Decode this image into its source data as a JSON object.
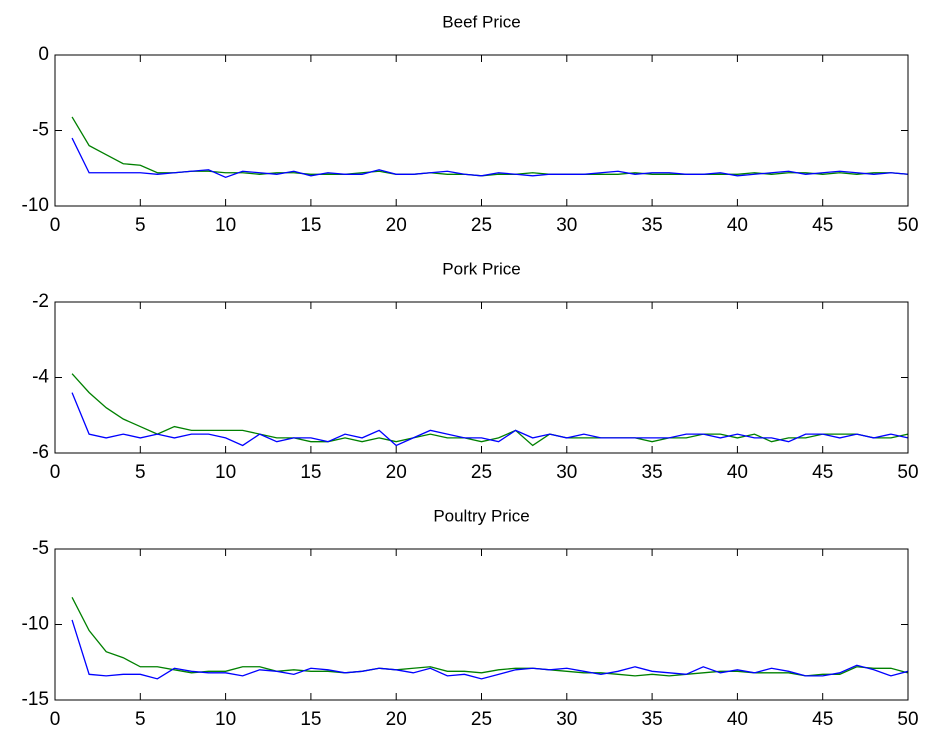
{
  "chart_data": [
    {
      "type": "line",
      "title": "Beef Price",
      "x": [
        1,
        2,
        3,
        4,
        5,
        6,
        7,
        8,
        9,
        10,
        11,
        12,
        13,
        14,
        15,
        16,
        17,
        18,
        19,
        20,
        21,
        22,
        23,
        24,
        25,
        26,
        27,
        28,
        29,
        30,
        31,
        32,
        33,
        34,
        35,
        36,
        37,
        38,
        39,
        40,
        41,
        42,
        43,
        44,
        45,
        46,
        47,
        48,
        49,
        50
      ],
      "series": [
        {
          "color": "#008000",
          "values": [
            -4.1,
            -6.0,
            -6.6,
            -7.2,
            -7.3,
            -7.8,
            -7.8,
            -7.7,
            -7.7,
            -7.8,
            -7.8,
            -7.9,
            -7.8,
            -7.8,
            -7.9,
            -7.9,
            -7.9,
            -7.8,
            -7.7,
            -7.9,
            -7.9,
            -7.8,
            -7.9,
            -7.9,
            -8.0,
            -7.9,
            -7.9,
            -7.8,
            -7.9,
            -7.9,
            -7.9,
            -7.9,
            -7.9,
            -7.8,
            -7.9,
            -7.9,
            -7.9,
            -7.9,
            -7.9,
            -7.9,
            -7.8,
            -7.9,
            -7.8,
            -7.8,
            -7.9,
            -7.8,
            -7.9,
            -7.8,
            -7.8,
            -7.9
          ]
        },
        {
          "color": "#0000ff",
          "values": [
            -5.5,
            -7.8,
            -7.8,
            -7.8,
            -7.8,
            -7.9,
            -7.8,
            -7.7,
            -7.6,
            -8.1,
            -7.7,
            -7.8,
            -7.9,
            -7.7,
            -8.0,
            -7.8,
            -7.9,
            -7.9,
            -7.6,
            -7.9,
            -7.9,
            -7.8,
            -7.7,
            -7.9,
            -8.0,
            -7.8,
            -7.9,
            -8.0,
            -7.9,
            -7.9,
            -7.9,
            -7.8,
            -7.7,
            -7.9,
            -7.8,
            -7.8,
            -7.9,
            -7.9,
            -7.8,
            -8.0,
            -7.9,
            -7.8,
            -7.7,
            -7.9,
            -7.8,
            -7.7,
            -7.8,
            -7.9,
            -7.8,
            -7.9
          ]
        }
      ],
      "xlim": [
        0,
        50
      ],
      "xticks": [
        0,
        5,
        10,
        15,
        20,
        25,
        30,
        35,
        40,
        45,
        50
      ],
      "ylim": [
        -10,
        0
      ],
      "yticks": [
        -10,
        -5,
        0
      ],
      "grid": false
    },
    {
      "type": "line",
      "title": "Pork Price",
      "x": [
        1,
        2,
        3,
        4,
        5,
        6,
        7,
        8,
        9,
        10,
        11,
        12,
        13,
        14,
        15,
        16,
        17,
        18,
        19,
        20,
        21,
        22,
        23,
        24,
        25,
        26,
        27,
        28,
        29,
        30,
        31,
        32,
        33,
        34,
        35,
        36,
        37,
        38,
        39,
        40,
        41,
        42,
        43,
        44,
        45,
        46,
        47,
        48,
        49,
        50
      ],
      "series": [
        {
          "color": "#008000",
          "values": [
            -3.9,
            -4.4,
            -4.8,
            -5.1,
            -5.3,
            -5.5,
            -5.3,
            -5.4,
            -5.4,
            -5.4,
            -5.4,
            -5.5,
            -5.6,
            -5.6,
            -5.7,
            -5.7,
            -5.6,
            -5.7,
            -5.6,
            -5.7,
            -5.6,
            -5.5,
            -5.6,
            -5.6,
            -5.7,
            -5.6,
            -5.4,
            -5.8,
            -5.5,
            -5.6,
            -5.6,
            -5.6,
            -5.6,
            -5.6,
            -5.7,
            -5.6,
            -5.6,
            -5.5,
            -5.5,
            -5.6,
            -5.5,
            -5.7,
            -5.6,
            -5.6,
            -5.5,
            -5.5,
            -5.5,
            -5.6,
            -5.6,
            -5.5
          ]
        },
        {
          "color": "#0000ff",
          "values": [
            -4.4,
            -5.5,
            -5.6,
            -5.5,
            -5.6,
            -5.5,
            -5.6,
            -5.5,
            -5.5,
            -5.6,
            -5.8,
            -5.5,
            -5.7,
            -5.6,
            -5.6,
            -5.7,
            -5.5,
            -5.6,
            -5.4,
            -5.8,
            -5.6,
            -5.4,
            -5.5,
            -5.6,
            -5.6,
            -5.7,
            -5.4,
            -5.6,
            -5.5,
            -5.6,
            -5.5,
            -5.6,
            -5.6,
            -5.6,
            -5.6,
            -5.6,
            -5.5,
            -5.5,
            -5.6,
            -5.5,
            -5.6,
            -5.6,
            -5.7,
            -5.5,
            -5.5,
            -5.6,
            -5.5,
            -5.6,
            -5.5,
            -5.6
          ]
        }
      ],
      "xlim": [
        0,
        50
      ],
      "xticks": [
        0,
        5,
        10,
        15,
        20,
        25,
        30,
        35,
        40,
        45,
        50
      ],
      "ylim": [
        -6,
        -2
      ],
      "yticks": [
        -6,
        -4,
        -2
      ],
      "grid": false
    },
    {
      "type": "line",
      "title": "Poultry Price",
      "x": [
        1,
        2,
        3,
        4,
        5,
        6,
        7,
        8,
        9,
        10,
        11,
        12,
        13,
        14,
        15,
        16,
        17,
        18,
        19,
        20,
        21,
        22,
        23,
        24,
        25,
        26,
        27,
        28,
        29,
        30,
        31,
        32,
        33,
        34,
        35,
        36,
        37,
        38,
        39,
        40,
        41,
        42,
        43,
        44,
        45,
        46,
        47,
        48,
        49,
        50
      ],
      "series": [
        {
          "color": "#008000",
          "values": [
            -8.2,
            -10.4,
            -11.8,
            -12.2,
            -12.8,
            -12.8,
            -13.0,
            -13.2,
            -13.1,
            -13.1,
            -12.8,
            -12.8,
            -13.1,
            -13.0,
            -13.1,
            -13.1,
            -13.2,
            -13.1,
            -12.9,
            -13.0,
            -12.9,
            -12.8,
            -13.1,
            -13.1,
            -13.2,
            -13.0,
            -12.9,
            -12.9,
            -13.0,
            -13.1,
            -13.2,
            -13.2,
            -13.3,
            -13.4,
            -13.3,
            -13.4,
            -13.3,
            -13.2,
            -13.1,
            -13.1,
            -13.2,
            -13.2,
            -13.2,
            -13.4,
            -13.3,
            -13.3,
            -12.8,
            -12.9,
            -12.9,
            -13.2
          ]
        },
        {
          "color": "#0000ff",
          "values": [
            -9.7,
            -13.3,
            -13.4,
            -13.3,
            -13.3,
            -13.6,
            -12.9,
            -13.1,
            -13.2,
            -13.2,
            -13.4,
            -13.0,
            -13.1,
            -13.3,
            -12.9,
            -13.0,
            -13.2,
            -13.1,
            -12.9,
            -13.0,
            -13.2,
            -12.9,
            -13.4,
            -13.3,
            -13.6,
            -13.3,
            -13.0,
            -12.9,
            -13.0,
            -12.9,
            -13.1,
            -13.3,
            -13.1,
            -12.8,
            -13.1,
            -13.2,
            -13.3,
            -12.8,
            -13.2,
            -13.0,
            -13.2,
            -12.9,
            -13.1,
            -13.4,
            -13.4,
            -13.2,
            -12.7,
            -13.0,
            -13.4,
            -13.1
          ]
        }
      ],
      "xlim": [
        0,
        50
      ],
      "xticks": [
        0,
        5,
        10,
        15,
        20,
        25,
        30,
        35,
        40,
        45,
        50
      ],
      "ylim": [
        -15,
        -5
      ],
      "yticks": [
        -15,
        -10,
        -5
      ],
      "grid": false
    }
  ]
}
